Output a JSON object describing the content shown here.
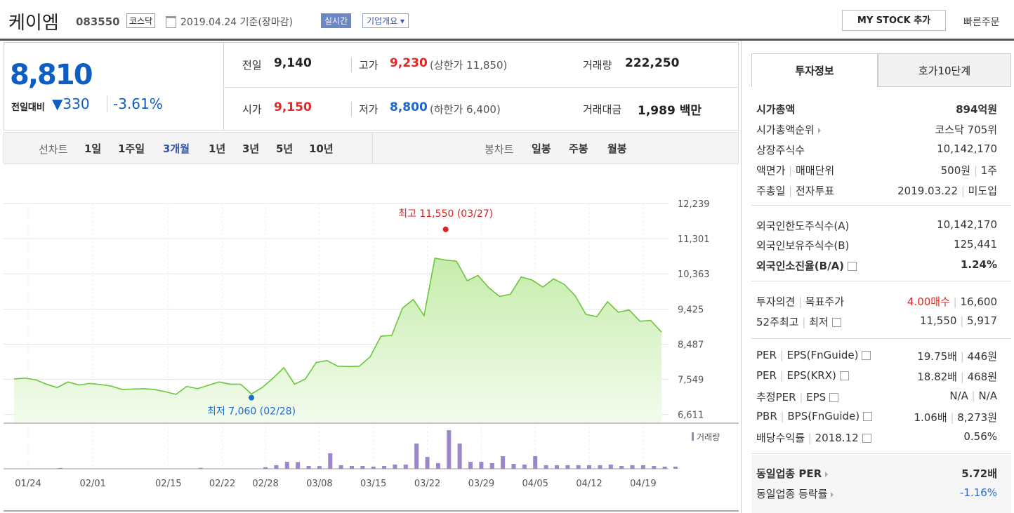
{
  "header": {
    "name": "케이엠",
    "code": "083550",
    "market": "코스닥",
    "date": "2019.04.24 기준(장마감)",
    "realtime": "실시간",
    "overview": "기업개요 ▾",
    "mystock": "MY STOCK 추가",
    "quick_order": "빠른주문"
  },
  "price": {
    "current": "8,810",
    "change_label": "전일대비",
    "change": "▼330",
    "rate": "-3.61%"
  },
  "quote": [
    {
      "label": "전일",
      "value": "9,140"
    },
    {
      "label": "고가",
      "value": "9,230",
      "extra": "(상한가 11,850)"
    },
    {
      "label": "거래량",
      "value": "222,250"
    },
    {
      "label": "시가",
      "value": "9,150"
    },
    {
      "label": "저가",
      "value": "8,800",
      "extra": "(하한가 6,400)"
    },
    {
      "label": "거래대금",
      "value": "1,989 백만"
    }
  ],
  "period_tabs": {
    "label": "선차트",
    "items": [
      "1일",
      "1주일",
      "3개월",
      "1년",
      "3년",
      "5년",
      "10년"
    ],
    "active": 2
  },
  "candle_tabs": {
    "label": "봉차트",
    "items": [
      "일봉",
      "주봉",
      "월봉"
    ]
  },
  "chart": {
    "type": "line",
    "color": "#6cc63c",
    "categories": [
      "01/24",
      null,
      null,
      null,
      null,
      null,
      "02/01",
      null,
      null,
      null,
      null,
      null,
      null,
      "02/15",
      null,
      null,
      null,
      null,
      "02/22",
      null,
      null,
      null,
      "02/28",
      null,
      null,
      null,
      null,
      "03/08",
      null,
      null,
      null,
      null,
      "03/15",
      null,
      null,
      null,
      null,
      "03/22",
      null,
      null,
      null,
      null,
      "03/29",
      null,
      null,
      null,
      null,
      "04/05",
      null,
      null,
      null,
      null,
      "04/12",
      null,
      null,
      null,
      null,
      "04/19",
      null,
      null,
      null
    ],
    "values": [
      7560,
      7580,
      7540,
      7420,
      7330,
      7480,
      7400,
      7440,
      7410,
      7370,
      7280,
      7290,
      7300,
      7280,
      7220,
      7150,
      7360,
      7300,
      7390,
      7480,
      7420,
      7420,
      7160,
      7330,
      7580,
      7860,
      7420,
      7560,
      8000,
      8050,
      7900,
      7890,
      7900,
      8150,
      8700,
      8720,
      9450,
      9680,
      9250,
      10780,
      10730,
      10700,
      10180,
      10320,
      9990,
      9760,
      9820,
      10280,
      10200,
      10010,
      10230,
      10080,
      9780,
      9280,
      9220,
      9620,
      9340,
      9400,
      9100,
      9120,
      8810
    ],
    "ylim": [
      6380,
      12239
    ],
    "yticks": [
      {
        "value": 12239,
        "label": "12,239"
      },
      {
        "value": 11301,
        "label": "11,301"
      },
      {
        "value": 10363,
        "label": "10,363"
      },
      {
        "value": 9425,
        "label": "9,425"
      },
      {
        "value": 8487,
        "label": "8,487"
      },
      {
        "value": 7549,
        "label": "7,549"
      },
      {
        "value": 6611,
        "label": "6,611"
      }
    ],
    "annotations": [
      {
        "text": "최고 11,550 (03/27)",
        "value": 11550,
        "color": "#e0201f"
      },
      {
        "text": "최저 7,060 (02/28)",
        "value": 7060,
        "color": "#1c6bd2"
      }
    ],
    "volume": {
      "name": "거래량",
      "color": "#9a86c8",
      "ylim": [
        0,
        1500000
      ],
      "values": [
        8000,
        6000,
        5000,
        30000,
        5000,
        6000,
        4000,
        5000,
        4000,
        5000,
        3000,
        4000,
        5000,
        4000,
        5000,
        4000,
        35000,
        6000,
        5000,
        6000,
        5000,
        6000,
        60000,
        140000,
        270000,
        260000,
        110000,
        105000,
        600000,
        140000,
        110000,
        110000,
        85000,
        110000,
        165000,
        165000,
        980000,
        460000,
        220000,
        1500000,
        980000,
        270000,
        270000,
        220000,
        490000,
        190000,
        165000,
        490000,
        140000,
        140000,
        140000,
        140000,
        140000,
        140000,
        165000,
        110000,
        140000,
        140000,
        110000,
        85000,
        85000
      ]
    }
  },
  "side": {
    "tabs": [
      "투자정보",
      "호가10단계"
    ],
    "groups": [
      {
        "rows": [
          {
            "label": [
              "시가총액"
            ],
            "value": [
              "894억원"
            ],
            "bold": true
          },
          {
            "label": [
              "시가총액순위"
            ],
            "icon": "arrow",
            "value": [
              "코스닥 705위"
            ]
          },
          {
            "label": [
              "상장주식수"
            ],
            "value": [
              "10,142,170"
            ]
          },
          {
            "label": [
              "액면가",
              "매매단위"
            ],
            "value": [
              "500원",
              "1주"
            ]
          },
          {
            "label": [
              "주총일",
              "전자투표"
            ],
            "value": [
              "2019.03.22",
              "미도입"
            ]
          }
        ]
      },
      {
        "rows": [
          {
            "label": [
              "외국인한도주식수(A)"
            ],
            "value": [
              "10,142,170"
            ]
          },
          {
            "label": [
              "외국인보유주식수(B)"
            ],
            "value": [
              "125,441"
            ]
          },
          {
            "label": [
              "외국인소진율(B/A)"
            ],
            "icon": "help",
            "value": [
              "1.24%"
            ],
            "bold": true
          }
        ]
      },
      {
        "rows": [
          {
            "label": [
              "투자의견",
              "목표주가"
            ],
            "value": [
              "4.00매수",
              "16,600"
            ],
            "color": "#e0281e"
          },
          {
            "label": [
              "52주최고",
              "최저"
            ],
            "icon": "help",
            "value": [
              "11,550",
              "5,917"
            ]
          }
        ]
      },
      {
        "rows": [
          {
            "label": [
              "PER",
              "EPS(FnGuide)"
            ],
            "icon": "help",
            "value": [
              "19.75배",
              "446원"
            ]
          },
          {
            "label": [
              "PER",
              "EPS(KRX)"
            ],
            "icon": "help",
            "value": [
              "18.82배",
              "468원"
            ]
          },
          {
            "label": [
              "추정PER",
              "EPS"
            ],
            "icon": "help",
            "value": [
              "N/A",
              "N/A"
            ]
          },
          {
            "label": [
              "PBR",
              "BPS(FnGuide)"
            ],
            "icon": "help",
            "value": [
              "1.06배",
              "8,273원"
            ]
          },
          {
            "label": [
              "배당수익률",
              "2018.12"
            ],
            "icon": "help",
            "value": [
              "0.56%"
            ]
          }
        ]
      },
      {
        "rows": [
          {
            "label": [
              "동일업종 PER"
            ],
            "icon": "arrow",
            "value": [
              "5.72배"
            ],
            "bold": true
          },
          {
            "label": [
              "동일업종 등락률"
            ],
            "icon": "arrow",
            "value": [
              "-1.16%"
            ],
            "color": "#2a6ad3"
          }
        ]
      }
    ]
  }
}
